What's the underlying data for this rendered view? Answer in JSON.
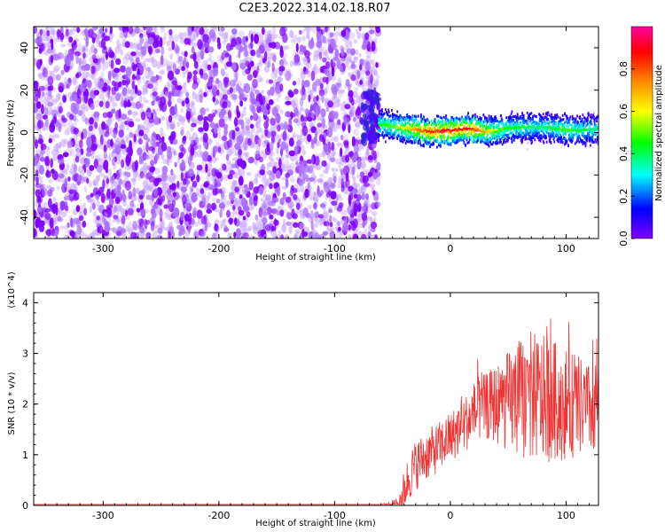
{
  "title": "C2E3.2022.314.02.18.R07",
  "chart_data": [
    {
      "type": "heatmap",
      "xlabel": "Height of straight line (km)",
      "ylabel": "Frequency (Hz)",
      "xlim": [
        -360,
        128
      ],
      "ylim": [
        -50,
        50
      ],
      "x_ticks": [
        -300,
        -200,
        -100,
        0,
        100
      ],
      "y_ticks": [
        -40,
        -20,
        0,
        20,
        40
      ],
      "colorbar": {
        "label": "Normalized spectral amplitude",
        "range": [
          0,
          1
        ],
        "ticks": [
          0.0,
          0.2,
          0.4,
          0.6,
          0.8
        ],
        "colors": [
          "#7f00ff",
          "#0000ff",
          "#00ffff",
          "#00ff00",
          "#ffff00",
          "#ff7f00",
          "#ff0000",
          "#ff00c0"
        ]
      },
      "noise_region_x": [
        -360,
        -62
      ],
      "signal_ridge": {
        "x": [
          -62,
          -50,
          -40,
          -30,
          -20,
          -10,
          0,
          10,
          20,
          30,
          40,
          50,
          60,
          70,
          80,
          90,
          100,
          110,
          120
        ],
        "frequency": [
          4,
          3,
          2,
          1.5,
          0.5,
          0.5,
          1,
          1.5,
          1.5,
          0.5,
          1,
          2,
          2.5,
          2.5,
          2.5,
          2,
          1.5,
          1,
          1.5
        ],
        "amplitude": [
          0.45,
          0.5,
          0.6,
          0.75,
          0.85,
          0.9,
          0.9,
          0.88,
          0.85,
          0.7,
          0.55,
          0.45,
          0.45,
          0.4,
          0.4,
          0.45,
          0.5,
          0.45,
          0.4
        ]
      }
    },
    {
      "type": "line",
      "xlabel": "Height of straight line (km)",
      "ylabel": "SNR (10 * v/v)",
      "yscale_label": "(x10^4)",
      "xlim": [
        -360,
        128
      ],
      "ylim": [
        0,
        4.2
      ],
      "x_ticks": [
        -300,
        -200,
        -100,
        0,
        100
      ],
      "y_ticks": [
        0,
        1,
        2,
        3,
        4
      ],
      "series": [
        {
          "color": "#ee3333",
          "x": [
            -360,
            -300,
            -200,
            -100,
            -60,
            -45,
            -40,
            -35,
            -30,
            -20,
            -10,
            0,
            10,
            20,
            30,
            40,
            50,
            60,
            70,
            80,
            90,
            100,
            110,
            120,
            128
          ],
          "y": [
            0.02,
            0.02,
            0.02,
            0.02,
            0.02,
            0.05,
            0.3,
            0.6,
            0.8,
            1.0,
            1.15,
            1.35,
            1.55,
            1.8,
            1.95,
            2.0,
            2.05,
            2.1,
            2.15,
            2.1,
            2.05,
            2.0,
            1.95,
            1.9,
            1.9
          ],
          "noise_amplitude": [
            0,
            0,
            0,
            0,
            0,
            0.1,
            0.4,
            0.5,
            0.5,
            0.5,
            0.5,
            0.5,
            0.55,
            0.6,
            0.65,
            0.8,
            1.0,
            1.2,
            1.3,
            1.25,
            1.2,
            1.1,
            1.0,
            0.9,
            0.9
          ]
        }
      ]
    }
  ]
}
